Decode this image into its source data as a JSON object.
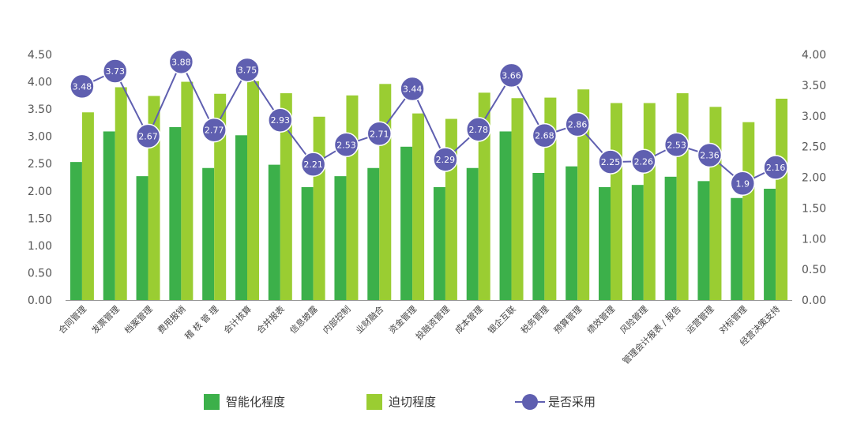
{
  "chart_data": {
    "type": "bar",
    "categories": [
      "合同管理",
      "发票管理",
      "档案管理",
      "费用报销",
      "稽 核 管 理",
      "会计核算",
      "合并报表",
      "信息披露",
      "内部控制",
      "业财融合",
      "资金管理",
      "投融资管理",
      "成本管理",
      "银企互联",
      "税务管理",
      "预算管理",
      "绩效管理",
      "风险管理",
      "管理会计报表 / 报告",
      "运营管理",
      "对标管理",
      "经营决策支持"
    ],
    "series": [
      {
        "name": "智能化程度",
        "axis": "left",
        "type": "bar",
        "color": "#3cb04a",
        "values": [
          2.53,
          3.09,
          2.27,
          3.17,
          2.42,
          3.02,
          2.48,
          2.07,
          2.27,
          2.42,
          2.81,
          2.07,
          2.42,
          3.09,
          2.33,
          2.45,
          2.07,
          2.11,
          2.26,
          2.18,
          1.87,
          2.04
        ]
      },
      {
        "name": "迫切程度",
        "axis": "left",
        "type": "bar",
        "color": "#9acd32",
        "values": [
          3.44,
          3.9,
          3.74,
          4.0,
          3.78,
          4.01,
          3.79,
          3.36,
          3.75,
          3.96,
          3.42,
          3.32,
          3.8,
          3.7,
          3.71,
          3.86,
          3.61,
          3.61,
          3.79,
          3.54,
          3.26,
          3.69
        ]
      },
      {
        "name": "是否采用",
        "axis": "right",
        "type": "line",
        "color": "#5f5fb0",
        "values": [
          3.48,
          3.73,
          2.67,
          3.88,
          2.77,
          3.75,
          2.93,
          2.21,
          2.53,
          2.71,
          3.44,
          2.29,
          2.78,
          3.66,
          2.68,
          2.86,
          2.25,
          2.26,
          2.53,
          2.36,
          1.9,
          2.16
        ],
        "labels": [
          "3.48",
          "3.73",
          "2.67",
          "3.88",
          "2.77",
          "3.75",
          "2.93",
          "2.21",
          "2.53",
          "2.71",
          "3.44",
          "2.29",
          "2.78",
          "3.66",
          "2.68",
          "2.86",
          "2.25",
          "2.26",
          "2.53",
          "2.36",
          "1.9",
          "2.16"
        ]
      }
    ],
    "y_left": {
      "range": [
        0,
        4.5
      ],
      "ticks": [
        "0.00",
        "0.50",
        "1.00",
        "1.50",
        "2.00",
        "2.50",
        "3.00",
        "3.50",
        "4.00",
        "4.50"
      ]
    },
    "y_right": {
      "range": [
        0,
        4.0
      ],
      "ticks": [
        "0.00",
        "0.50",
        "1.00",
        "1.50",
        "2.00",
        "2.50",
        "3.00",
        "3.50",
        "4.00"
      ]
    },
    "grid": false,
    "legend": {
      "placement": "bottom",
      "items": [
        "智能化程度",
        "迫切程度",
        "是否采用"
      ]
    }
  }
}
